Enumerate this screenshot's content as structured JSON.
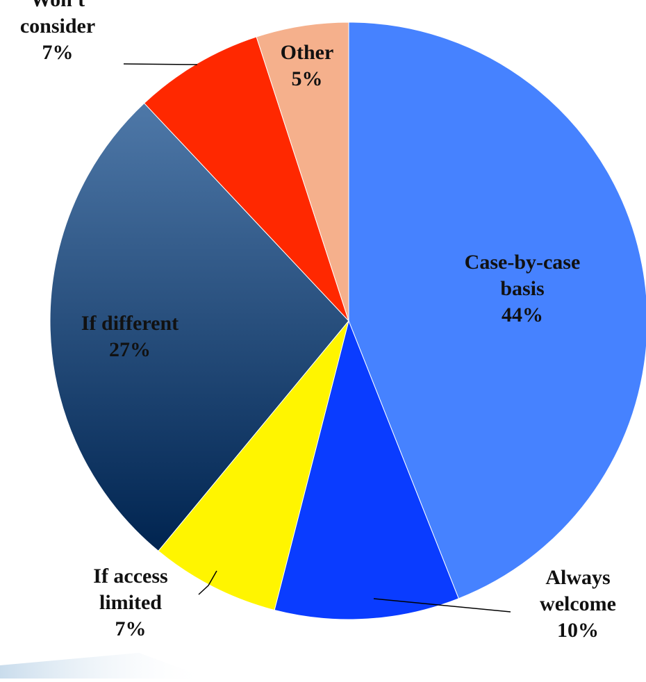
{
  "chart_data": {
    "type": "pie",
    "slices": [
      {
        "label": [
          "Case-by-case",
          "basis"
        ],
        "value": 44,
        "value_label": "44%",
        "color": "#4682FF"
      },
      {
        "label": [
          "Always",
          "welcome"
        ],
        "value": 10,
        "value_label": "10%",
        "color": "#0A3CFF"
      },
      {
        "label": [
          "If access",
          "limited"
        ],
        "value": 7,
        "value_label": "7%",
        "color": "#FFF500"
      },
      {
        "label": [
          "If different"
        ],
        "value": 27,
        "value_label": "27%",
        "color": "#0C3F78",
        "gradient": [
          "#4E78A8",
          "#002450"
        ]
      },
      {
        "label": [
          "Won't",
          "consider"
        ],
        "value": 7,
        "value_label": "7%",
        "color": "#FF2800"
      },
      {
        "label": [
          "Other"
        ],
        "value": 5,
        "value_label": "5%",
        "color": "#F5B08C"
      }
    ],
    "start_angle_deg": 0,
    "direction": "clockwise",
    "legend": "none"
  },
  "decor": {
    "bottom_band_color": "#C9DCEC"
  }
}
